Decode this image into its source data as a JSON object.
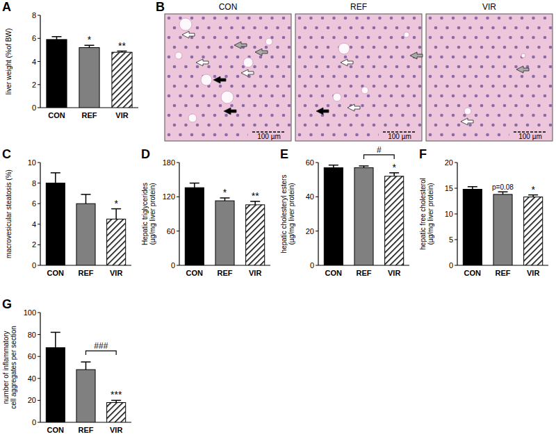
{
  "chart_data": [
    {
      "type": "bar",
      "panel": "A",
      "ylabel": [
        "liver weight (%of BW)"
      ],
      "categories": [
        "CON",
        "REF",
        "VIR"
      ],
      "values": [
        5.9,
        5.2,
        4.8
      ],
      "errors": [
        0.25,
        0.2,
        0.1
      ],
      "colors": [
        "#000000",
        "#808080",
        "#ffffff"
      ],
      "ylim": [
        0,
        8
      ],
      "yticks": [
        0,
        2,
        4,
        6,
        8
      ],
      "annotations": [
        null,
        "*",
        "**"
      ],
      "brackets": []
    },
    {
      "type": "bar",
      "panel": "C",
      "ylabel": [
        "macrovesicular steatosis (%)"
      ],
      "categories": [
        "CON",
        "REF",
        "VIR"
      ],
      "values": [
        8.0,
        6.0,
        4.5
      ],
      "errors": [
        1.0,
        0.9,
        1.0
      ],
      "colors": [
        "#000000",
        "#808080",
        "#ffffff"
      ],
      "ylim": [
        0,
        10
      ],
      "yticks": [
        0,
        2,
        4,
        6,
        8,
        10
      ],
      "annotations": [
        null,
        null,
        "*"
      ],
      "brackets": []
    },
    {
      "type": "bar",
      "panel": "D",
      "ylabel": [
        "Hepatic triglycerides",
        "(µg/mg liver protein)"
      ],
      "categories": [
        "CON",
        "REF",
        "VIR"
      ],
      "values": [
        136,
        113,
        106
      ],
      "errors": [
        8,
        5,
        6
      ],
      "colors": [
        "#000000",
        "#808080",
        "#ffffff"
      ],
      "ylim": [
        0,
        180
      ],
      "yticks": [
        0,
        60,
        120,
        180
      ],
      "annotations": [
        null,
        "*",
        "**"
      ],
      "brackets": []
    },
    {
      "type": "bar",
      "panel": "E",
      "ylabel": [
        "hepatic cholesteryl esters",
        "(µg/mg liver protein)"
      ],
      "categories": [
        "CON",
        "REF",
        "VIR"
      ],
      "values": [
        57,
        57,
        52
      ],
      "errors": [
        1.5,
        1,
        2
      ],
      "colors": [
        "#000000",
        "#808080",
        "#ffffff"
      ],
      "ylim": [
        0,
        60
      ],
      "yticks": [
        0,
        20,
        40,
        60
      ],
      "annotations": [
        null,
        null,
        "*"
      ],
      "brackets": [
        {
          "between": [
            "REF",
            "VIR"
          ],
          "label": "#"
        }
      ]
    },
    {
      "type": "bar",
      "panel": "F",
      "ylabel": [
        "hepatic free cholesterol",
        "(µg/mg liver protein)"
      ],
      "categories": [
        "CON",
        "REF",
        "VIR"
      ],
      "values": [
        14.8,
        13.8,
        13.3
      ],
      "errors": [
        0.5,
        0.5,
        0.4
      ],
      "colors": [
        "#000000",
        "#808080",
        "#ffffff"
      ],
      "ylim": [
        0,
        20
      ],
      "yticks": [
        0,
        5,
        10,
        15,
        20
      ],
      "annotations": [
        null,
        "p=0.08",
        "*"
      ],
      "brackets": []
    },
    {
      "type": "bar",
      "panel": "G",
      "ylabel": [
        "number of inflammatory",
        "cell aggregates per section"
      ],
      "categories": [
        "CON",
        "REF",
        "VIR"
      ],
      "values": [
        68,
        48,
        18
      ],
      "errors": [
        14,
        7,
        2
      ],
      "colors": [
        "#000000",
        "#808080",
        "#ffffff"
      ],
      "ylim": [
        0,
        100
      ],
      "yticks": [
        0,
        20,
        40,
        60,
        80,
        100
      ],
      "annotations": [
        null,
        null,
        "***"
      ],
      "brackets": [
        {
          "between": [
            "REF",
            "VIR"
          ],
          "label": "###"
        }
      ]
    }
  ],
  "histology": {
    "panel": "B",
    "titles": [
      "CON",
      "REF",
      "VIR"
    ],
    "scale_bar": "100 µm"
  }
}
